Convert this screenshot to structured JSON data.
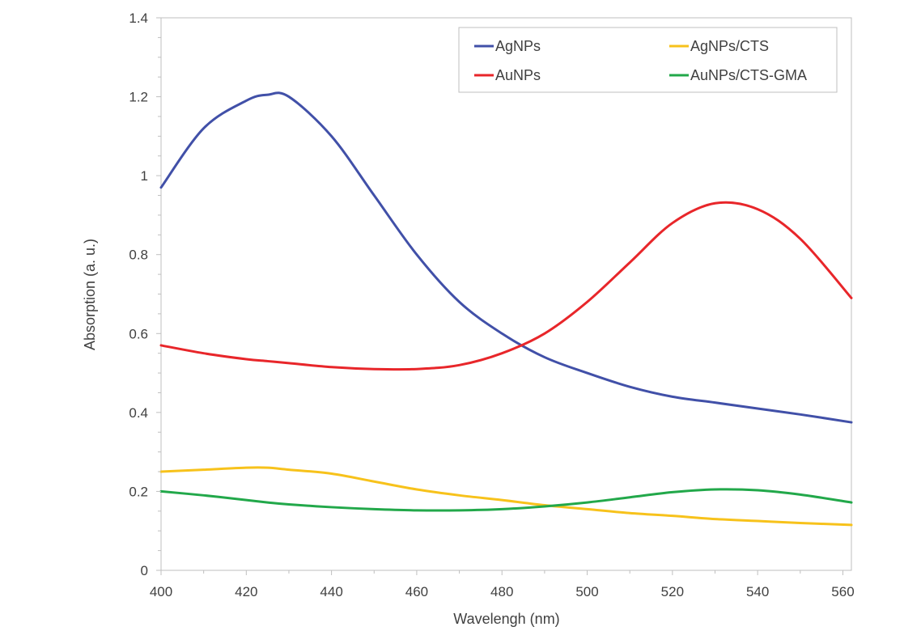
{
  "chart_data": {
    "type": "line",
    "title": "",
    "xlabel": "Wavelengh (nm)",
    "ylabel": "Absorption (a. u.)",
    "xlim": [
      400,
      562
    ],
    "ylim": [
      0,
      1.4
    ],
    "x_ticks": [
      400,
      420,
      440,
      460,
      480,
      500,
      520,
      540,
      560
    ],
    "x_tick_labels": [
      "400",
      "420",
      "440",
      "460",
      "480",
      "500",
      "520",
      "540",
      "560"
    ],
    "y_ticks": [
      0,
      0.2,
      0.4,
      0.6,
      0.8,
      1,
      1.2,
      1.4
    ],
    "y_tick_labels": [
      "0",
      "0.2",
      "0.4",
      "0.6",
      "0.8",
      "1",
      "1.2",
      "1.4"
    ],
    "grid": false,
    "legend_position": "top-right",
    "x": [
      400,
      410,
      420,
      425,
      430,
      440,
      450,
      460,
      470,
      480,
      490,
      500,
      510,
      520,
      530,
      540,
      550,
      562
    ],
    "series": [
      {
        "name": "AgNPs",
        "color": "#4150a8",
        "values": [
          0.97,
          1.12,
          1.19,
          1.205,
          1.2,
          1.1,
          0.95,
          0.8,
          0.68,
          0.6,
          0.54,
          0.5,
          0.465,
          0.44,
          0.425,
          0.41,
          0.395,
          0.375
        ]
      },
      {
        "name": "AgNPs/CTS",
        "color": "#f7c21b",
        "values": [
          0.25,
          0.255,
          0.26,
          0.26,
          0.255,
          0.245,
          0.225,
          0.205,
          0.19,
          0.178,
          0.165,
          0.155,
          0.145,
          0.138,
          0.13,
          0.125,
          0.12,
          0.115
        ]
      },
      {
        "name": "AuNPs",
        "color": "#e8262a",
        "values": [
          0.57,
          0.55,
          0.535,
          0.53,
          0.525,
          0.515,
          0.51,
          0.51,
          0.52,
          0.55,
          0.6,
          0.68,
          0.78,
          0.88,
          0.93,
          0.915,
          0.84,
          0.69
        ]
      },
      {
        "name": "AuNPs/CTS-GMA",
        "color": "#22a84a",
        "values": [
          0.2,
          0.19,
          0.178,
          0.172,
          0.167,
          0.16,
          0.155,
          0.152,
          0.152,
          0.155,
          0.162,
          0.172,
          0.185,
          0.198,
          0.205,
          0.203,
          0.192,
          0.172
        ]
      }
    ]
  }
}
